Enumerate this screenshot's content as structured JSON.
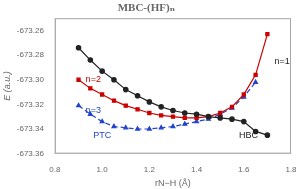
{
  "chart_data": {
    "type": "line",
    "title": "MBC-(HF)ₙ",
    "xlabel": "rN−H (Å)",
    "ylabel": "E (a.u.)",
    "xlim": [
      0.8,
      1.8
    ],
    "ylim": [
      -673.36,
      -673.25
    ],
    "xticks": [
      0.8,
      {
        "value": 1.0,
        "label": "1.0"
      },
      1.2,
      1.4,
      1.6,
      1.8
    ],
    "yticks": [
      -673.36,
      -673.34,
      -673.32,
      {
        "value": -673.3,
        "label": "-673.30"
      },
      -673.28,
      -673.26
    ],
    "grid": false,
    "series": [
      {
        "color": "#222222",
        "marker": "circle",
        "line_style": "solid",
        "x": [
          0.9,
          0.95,
          1.0,
          1.05,
          1.1,
          1.15,
          1.2,
          1.25,
          1.3,
          1.35,
          1.4,
          1.45,
          1.5,
          1.55,
          1.6,
          1.65,
          1.7
        ],
        "values": [
          -673.274,
          -673.284,
          -673.293,
          -673.3,
          -673.308,
          -673.313,
          -673.318,
          -673.322,
          -673.325,
          -673.327,
          -673.328,
          -673.33,
          -673.331,
          -673.332,
          -673.334,
          -673.342,
          -673.345
        ]
      },
      {
        "color": "#cc0000",
        "marker": "square",
        "line_style": "solid",
        "x": [
          0.9,
          0.95,
          1.0,
          1.05,
          1.1,
          1.15,
          1.2,
          1.25,
          1.3,
          1.35,
          1.4,
          1.45,
          1.5,
          1.55,
          1.6,
          1.65,
          1.7
        ],
        "values": [
          -673.3,
          -673.307,
          -673.312,
          -673.317,
          -673.321,
          -673.324,
          -673.327,
          -673.329,
          -673.33,
          -673.331,
          -673.331,
          -673.33,
          -673.327,
          -673.322,
          -673.312,
          -673.296,
          -673.263
        ]
      },
      {
        "color": "#2244cc",
        "marker": "triangle",
        "line_style": "dashed",
        "x": [
          0.9,
          0.95,
          1.0,
          1.05,
          1.1,
          1.15,
          1.2,
          1.25,
          1.3,
          1.35,
          1.4,
          1.45,
          1.5,
          1.55,
          1.6,
          1.65
        ],
        "values": [
          -673.321,
          -673.328,
          -673.334,
          -673.338,
          -673.339,
          -673.34,
          -673.34,
          -673.339,
          -673.338,
          -673.336,
          -673.334,
          -673.332,
          -673.328,
          -673.323,
          -673.314,
          -673.302
        ]
      }
    ],
    "annotations": [
      {
        "text": "n=1",
        "color": "#222222"
      },
      {
        "text": "n=2",
        "color": "#cc0000"
      },
      {
        "text": "n=3",
        "color": "#2244cc"
      },
      {
        "text": "PTC",
        "color": "#2244cc"
      },
      {
        "text": "HBC",
        "color": "#222222"
      }
    ]
  }
}
